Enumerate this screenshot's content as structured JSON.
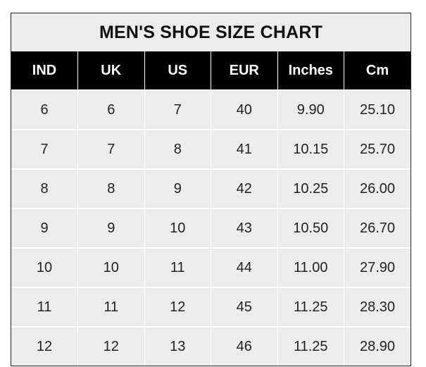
{
  "title": "MEN'S SHOE SIZE CHART",
  "columns": [
    "IND",
    "UK",
    "US",
    "EUR",
    "Inches",
    "Cm"
  ],
  "rows": [
    [
      "6",
      "6",
      "7",
      "40",
      "9.90",
      "25.10"
    ],
    [
      "7",
      "7",
      "8",
      "41",
      "10.15",
      "25.70"
    ],
    [
      "8",
      "8",
      "9",
      "42",
      "10.25",
      "26.00"
    ],
    [
      "9",
      "9",
      "10",
      "43",
      "10.50",
      "26.70"
    ],
    [
      "10",
      "10",
      "11",
      "44",
      "11.00",
      "27.90"
    ],
    [
      "11",
      "11",
      "12",
      "45",
      "11.25",
      "28.30"
    ],
    [
      "12",
      "12",
      "13",
      "46",
      "11.25",
      "28.90"
    ]
  ],
  "colors": {
    "header_bg": "#000000",
    "body_bg": "#ececec",
    "grid": "#ffffff"
  }
}
